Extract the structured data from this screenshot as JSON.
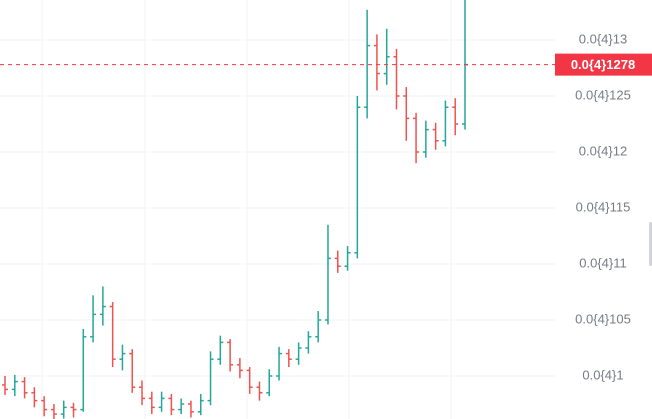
{
  "chart_data": {
    "type": "ohlc",
    "open": [
      9.92e-06,
      9.88e-06,
      9.95e-06,
      9.85e-06,
      9.78e-06,
      9.7e-06,
      9.66e-06,
      9.72e-06,
      9.7e-06,
      1.035e-05,
      1.055e-05,
      1.062e-05,
      1.015e-05,
      1.02e-05,
      9.9e-06,
      9.8e-06,
      9.72e-06,
      9.8e-06,
      9.7e-06,
      9.75e-06,
      9.68e-06,
      9.78e-06,
      1.015e-05,
      1.03e-05,
      1.01e-05,
      1.005e-05,
      9.9e-06,
      9.85e-06,
      1e-05,
      1.02e-05,
      1.015e-05,
      1.025e-05,
      1.035e-05,
      1.05e-05,
      1.105e-05,
      1.098e-05,
      1.11e-05,
      1.24e-05,
      1.295e-05,
      1.27e-05,
      1.285e-05,
      1.25e-05,
      1.23e-05,
      1.2e-05,
      1.22e-05,
      1.21e-05,
      1.24e-05,
      1.225e-05
    ],
    "high": [
      1e-05,
      1.001e-05,
      9.99e-06,
      9.9e-06,
      9.82e-06,
      9.75e-06,
      9.78e-06,
      9.76e-06,
      1.042e-05,
      1.072e-05,
      1.08e-05,
      1.066e-05,
      1.028e-05,
      1.024e-05,
      9.96e-06,
      9.86e-06,
      9.86e-06,
      9.84e-06,
      9.8e-06,
      9.78e-06,
      9.84e-06,
      1.022e-05,
      1.036e-05,
      1.033e-05,
      1.016e-05,
      1.008e-05,
      9.95e-06,
      1.006e-05,
      1.026e-05,
      1.024e-05,
      1.03e-05,
      1.04e-05,
      1.058e-05,
      1.135e-05,
      1.112e-05,
      1.116e-05,
      1.25e-05,
      1.327e-05,
      1.305e-05,
      1.31e-05,
      1.292e-05,
      1.258e-05,
      1.235e-05,
      1.228e-05,
      1.226e-05,
      1.246e-05,
      1.248e-05,
      1.34e-05
    ],
    "low": [
      9.83e-06,
      9.82e-06,
      9.8e-06,
      9.72e-06,
      9.64e-06,
      9.6e-06,
      9.62e-06,
      9.63e-06,
      9.68e-06,
      1.03e-05,
      1.045e-05,
      1.008e-05,
      1.005e-05,
      9.85e-06,
      9.74e-06,
      9.66e-06,
      9.68e-06,
      9.65e-06,
      9.66e-06,
      9.63e-06,
      9.65e-06,
      9.74e-06,
      1.01e-05,
      1.004e-05,
      9.98e-06,
      9.84e-06,
      9.78e-06,
      9.82e-06,
      9.96e-06,
      1.008e-05,
      1.01e-05,
      1.02e-05,
      1.03e-05,
      1.046e-05,
      1.092e-05,
      1.094e-05,
      1.105e-05,
      1.23e-05,
      1.255e-05,
      1.26e-05,
      1.238e-05,
      1.21e-05,
      1.19e-05,
      1.195e-05,
      1.202e-05,
      1.205e-05,
      1.215e-05,
      1.22e-05
    ],
    "close": [
      9.88e-06,
      9.95e-06,
      9.85e-06,
      9.78e-06,
      9.7e-06,
      9.66e-06,
      9.72e-06,
      9.7e-06,
      1.035e-05,
      1.055e-05,
      1.062e-05,
      1.015e-05,
      1.02e-05,
      9.9e-06,
      9.8e-06,
      9.72e-06,
      9.8e-06,
      9.7e-06,
      9.75e-06,
      9.68e-06,
      9.78e-06,
      1.015e-05,
      1.03e-05,
      1.01e-05,
      1.005e-05,
      9.9e-06,
      9.85e-06,
      1e-05,
      1.02e-05,
      1.015e-05,
      1.025e-05,
      1.035e-05,
      1.05e-05,
      1.105e-05,
      1.098e-05,
      1.11e-05,
      1.24e-05,
      1.295e-05,
      1.27e-05,
      1.285e-05,
      1.25e-05,
      1.23e-05,
      1.2e-05,
      1.22e-05,
      1.21e-05,
      1.24e-05,
      1.225e-05,
      1.278e-05
    ],
    "up_color": "#26a69a",
    "down_color": "#ef5350",
    "ylim": [
      9.616e-06,
      1.3357e-05
    ],
    "yticks": [
      {
        "value": 1e-05,
        "label": "0.0{4}1"
      },
      {
        "value": 1.05e-05,
        "label": "0.0{4}105"
      },
      {
        "value": 1.1e-05,
        "label": "0.0{4}11"
      },
      {
        "value": 1.15e-05,
        "label": "0.0{4}115"
      },
      {
        "value": 1.2e-05,
        "label": "0.0{4}12"
      },
      {
        "value": 1.25e-05,
        "label": "0.0{4}125"
      },
      {
        "value": 1.3e-05,
        "label": "0.0{4}13"
      }
    ],
    "grid": true,
    "last_price": {
      "value": 1.278e-05,
      "label": "0.0{4}1278"
    },
    "last_price_color": "#f23645"
  }
}
